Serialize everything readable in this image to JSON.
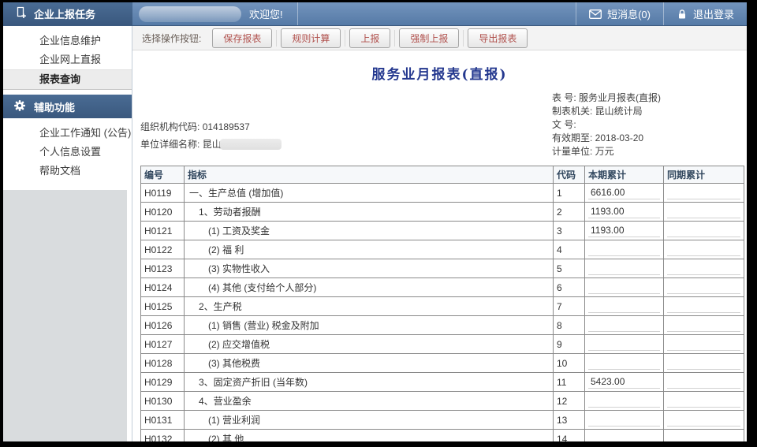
{
  "topbar": {
    "app_menu_title": "企业上报任务",
    "username_redacted": true,
    "welcome": "欢迎您!",
    "messages_label": "短消息(0)",
    "logout_label": "退出登录"
  },
  "sidebar": {
    "selected_item": "报表查询",
    "sections": [
      {
        "title": "企业上报任务",
        "icon": "report-plus-icon",
        "items": [
          "企业信息维护",
          "企业网上直报",
          "报表查询"
        ]
      },
      {
        "title": "辅助功能",
        "icon": "gear-icon",
        "items": [
          "企业工作通知 (公告)",
          "个人信息设置",
          "帮助文档"
        ]
      }
    ]
  },
  "toolbar": {
    "label": "选择操作按钮:",
    "buttons": [
      "保存报表",
      "规则计算",
      "上报",
      "强制上报",
      "导出报表"
    ]
  },
  "report": {
    "title": "服务业月报表(直报)",
    "meta_left": [
      {
        "label": "组织机构代码:",
        "value": "014189537",
        "redacted": false
      },
      {
        "label": "单位详细名称:",
        "value": "昆山",
        "redacted": true
      }
    ],
    "meta_right": [
      {
        "label": "表 号:",
        "value": "服务业月报表(直报)"
      },
      {
        "label": "制表机关:",
        "value": "昆山统计局"
      },
      {
        "label": "文 号:",
        "value": ""
      },
      {
        "label": "有效期至:",
        "value": "2018-03-20"
      },
      {
        "label": "计量单位:",
        "value": "万元"
      }
    ]
  },
  "table": {
    "headers": [
      "编号",
      "指标",
      "代码",
      "本期累计",
      "同期累计"
    ],
    "rows": [
      {
        "id": "H0119",
        "indicator": "一、生产总值 (增加值)",
        "indent": 0,
        "code": "1",
        "current": "6616.00",
        "previous": ""
      },
      {
        "id": "H0120",
        "indicator": "1、劳动者报酬",
        "indent": 1,
        "code": "2",
        "current": "1193.00",
        "previous": ""
      },
      {
        "id": "H0121",
        "indicator": "(1) 工资及奖金",
        "indent": 2,
        "code": "3",
        "current": "1193.00",
        "previous": ""
      },
      {
        "id": "H0122",
        "indicator": "(2) 福 利",
        "indent": 2,
        "code": "4",
        "current": "",
        "previous": ""
      },
      {
        "id": "H0123",
        "indicator": "(3) 实物性收入",
        "indent": 2,
        "code": "5",
        "current": "",
        "previous": ""
      },
      {
        "id": "H0124",
        "indicator": "(4) 其他 (支付给个人部分)",
        "indent": 2,
        "code": "6",
        "current": "",
        "previous": ""
      },
      {
        "id": "H0125",
        "indicator": "2、生产税",
        "indent": 1,
        "code": "7",
        "current": "",
        "previous": ""
      },
      {
        "id": "H0126",
        "indicator": "(1) 销售 (营业) 税金及附加",
        "indent": 2,
        "code": "8",
        "current": "",
        "previous": ""
      },
      {
        "id": "H0127",
        "indicator": "(2) 应交增值税",
        "indent": 2,
        "code": "9",
        "current": "",
        "previous": ""
      },
      {
        "id": "H0128",
        "indicator": "(3) 其他税费",
        "indent": 2,
        "code": "10",
        "current": "",
        "previous": ""
      },
      {
        "id": "H0129",
        "indicator": "3、固定资产折旧 (当年数)",
        "indent": 1,
        "code": "11",
        "current": "5423.00",
        "previous": ""
      },
      {
        "id": "H0130",
        "indicator": "4、营业盈余",
        "indent": 1,
        "code": "12",
        "current": "",
        "previous": ""
      },
      {
        "id": "H0131",
        "indicator": "(1) 营业利润",
        "indent": 2,
        "code": "13",
        "current": "",
        "previous": ""
      },
      {
        "id": "H0132",
        "indicator": "(2) 其 他",
        "indent": 2,
        "code": "14",
        "current": "",
        "previous": ""
      }
    ]
  },
  "colors": {
    "topbar_blue": "#5a7ea9",
    "header_dark_blue": "#3f5e86",
    "button_text_red": "#b0504c",
    "link_blue": "#4a7db2",
    "title_blue": "#24388f",
    "table_border": "#8a8a8a",
    "sidebar_filler_gray": "#d9dcde"
  }
}
